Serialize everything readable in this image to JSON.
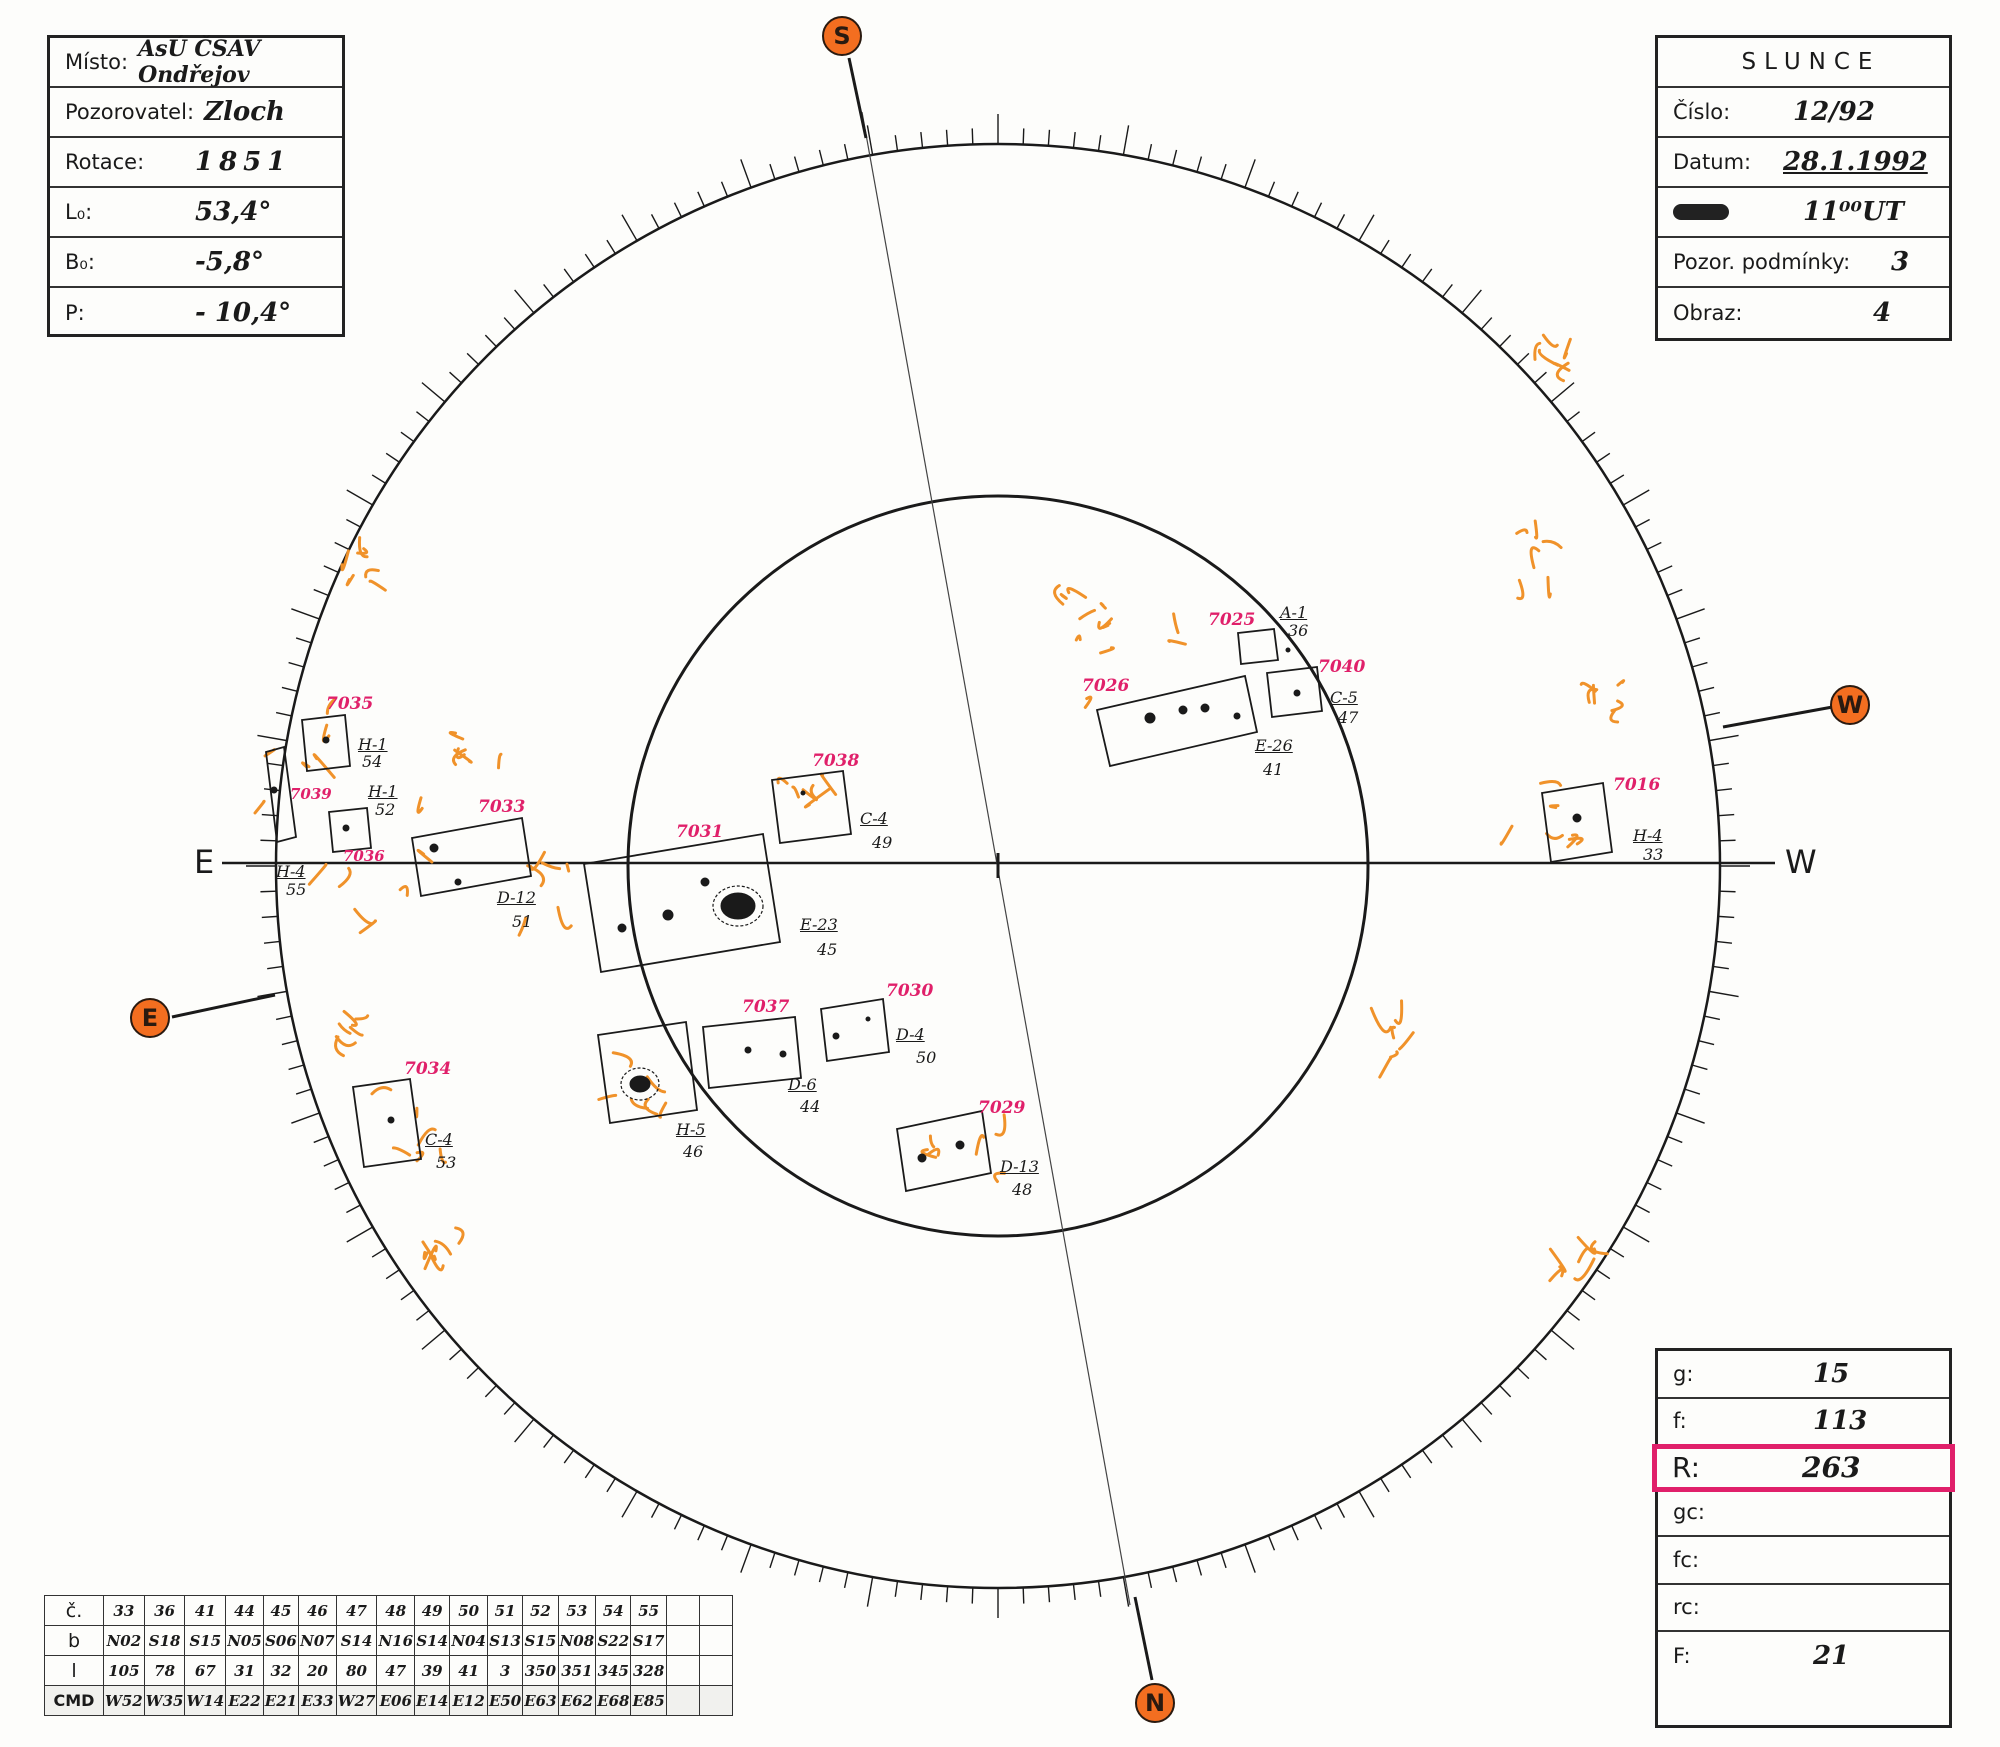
{
  "observation": {
    "labels": {
      "place": "Místo:",
      "observer": "Pozorovatel:",
      "rotation": "Rotace:",
      "l0": "L₀:",
      "b0": "B₀:",
      "p": "P:"
    },
    "values": {
      "place": "AsÚ ČSAV Ondřejov",
      "observer": "Zloch",
      "rotation": "1851",
      "l0": "53,4°",
      "b0": "-5,8°",
      "p": "- 10,4°"
    }
  },
  "sun_card": {
    "title": "SLUNCE",
    "labels": {
      "number": "Číslo:",
      "date": "Datum:",
      "conditions": "Pozor. podmínky:",
      "image": "Obraz:"
    },
    "values": {
      "number": "12/92",
      "date": "28.1.1992",
      "time": "11⁰⁰UT",
      "conditions": "3",
      "image": "4"
    }
  },
  "results": {
    "labels": {
      "g": "g:",
      "f": "f:",
      "r": "R:",
      "gc": "gc:",
      "fc": "fc:",
      "rc": "rc:",
      "F": "F:"
    },
    "values": {
      "g": "15",
      "f": "113",
      "r": "263",
      "gc": "",
      "fc": "",
      "rc": "",
      "F": "21"
    },
    "highlight_color": "#e0206a"
  },
  "group_table": {
    "row_labels": [
      "č.",
      "b",
      "l",
      "CMD"
    ],
    "numbers": [
      "33",
      "36",
      "41",
      "44",
      "45",
      "46",
      "47",
      "48",
      "49",
      "50",
      "51",
      "52",
      "53",
      "54",
      "55",
      "",
      ""
    ],
    "b": [
      "N02",
      "S18",
      "S15",
      "N05",
      "S06",
      "N07",
      "S14",
      "N16",
      "S14",
      "N04",
      "S13",
      "S15",
      "N08",
      "S22",
      "S17",
      "",
      ""
    ],
    "l": [
      "105",
      "78",
      "67",
      "31",
      "32",
      "20",
      "80",
      "47",
      "39",
      "41",
      "3",
      "350",
      "351",
      "345",
      "328",
      "",
      ""
    ],
    "cmd": [
      "W52",
      "W35",
      "W14",
      "E22",
      "E21",
      "E33",
      "W27",
      "E06",
      "E14",
      "E12",
      "E50",
      "E63",
      "E62",
      "E68",
      "E85",
      "",
      ""
    ]
  },
  "compass": {
    "S": "S",
    "N": "N",
    "W": "W",
    "E": "E",
    "axis_east": "E",
    "axis_west": "W",
    "badge_color": "#f36e20"
  },
  "regions": [
    {
      "id": "r7025",
      "number": "7025",
      "cls": "A-1",
      "count": "36"
    },
    {
      "id": "r7040",
      "number": "7040",
      "cls": "C-5",
      "count": "47"
    },
    {
      "id": "r7026",
      "number": "7026",
      "cls": "E-26",
      "count": "41"
    },
    {
      "id": "r7016",
      "number": "7016",
      "cls": "H-4",
      "count": "33"
    },
    {
      "id": "r7035",
      "number": "7035",
      "cls": "H-1",
      "count": "54"
    },
    {
      "id": "r7039",
      "number": "7039",
      "cls": "H-4",
      "count": "55"
    },
    {
      "id": "r7036",
      "number": "7036",
      "cls": "H-1",
      "count": "52"
    },
    {
      "id": "r7033",
      "number": "7033",
      "cls": "D-12",
      "count": "51"
    },
    {
      "id": "r7031",
      "number": "7031",
      "cls": "E-23",
      "count": "45"
    },
    {
      "id": "r7038",
      "number": "7038",
      "cls": "C-4",
      "count": "49"
    },
    {
      "id": "r7037",
      "number": "7037",
      "cls": "D-6",
      "count": "44"
    },
    {
      "id": "r7030",
      "number": "7030",
      "cls": "D-4",
      "count": "50"
    },
    {
      "id": "r7029",
      "number": "7029",
      "cls": "D-13",
      "count": "48"
    },
    {
      "id": "r7034",
      "number": "7034",
      "cls": "C-4",
      "count": "53"
    },
    {
      "id": "rH5",
      "number": "",
      "cls": "H-5",
      "count": "46"
    }
  ],
  "colors": {
    "faculae": "#f0922a",
    "region_number": "#e0206a",
    "ink": "#1a1a1a"
  }
}
